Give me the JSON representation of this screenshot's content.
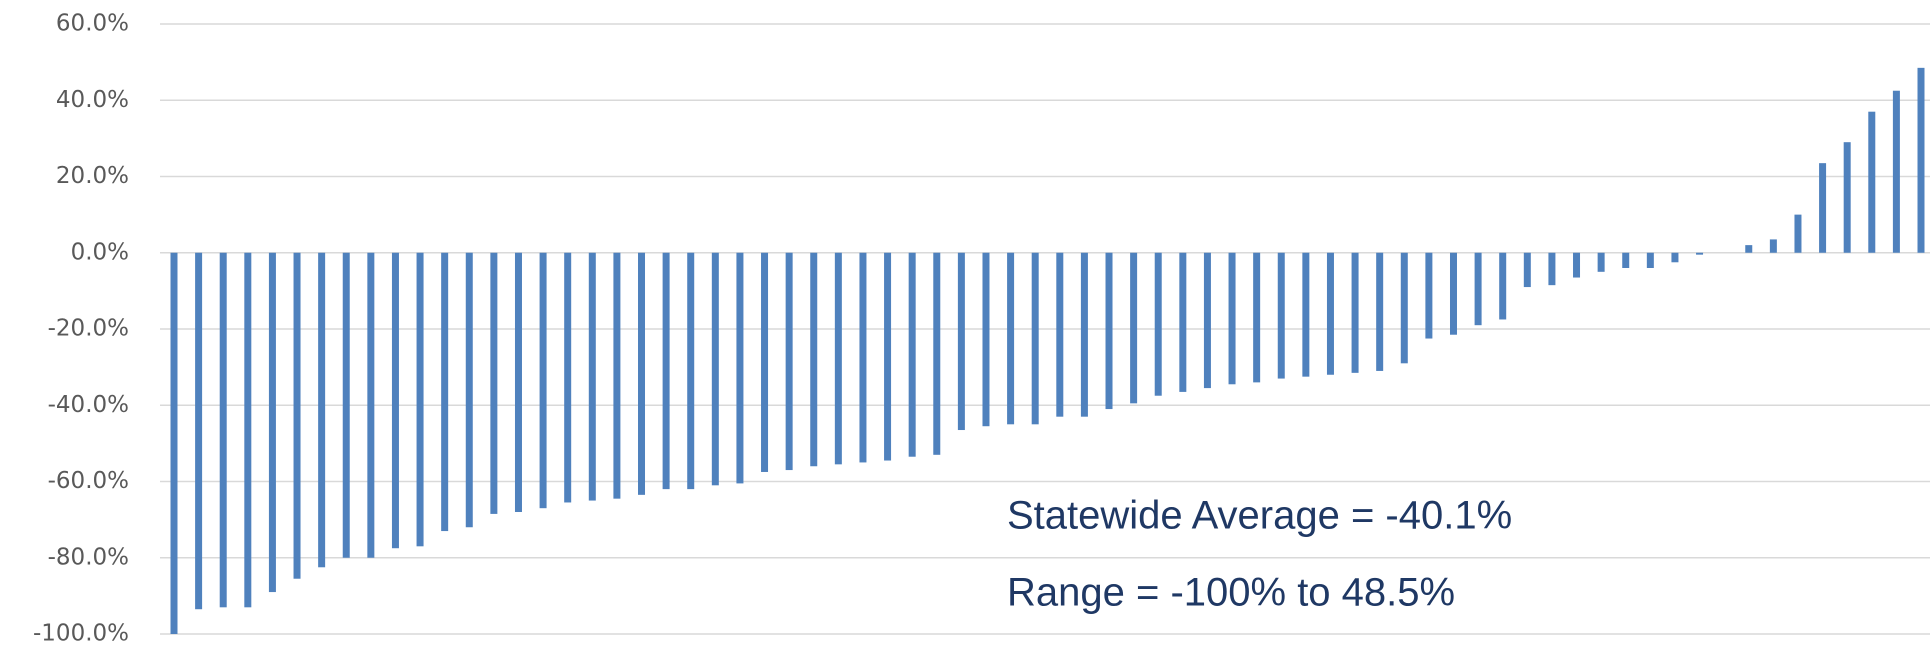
{
  "chart_data": {
    "type": "bar",
    "values": [
      -100,
      -93.5,
      -93,
      -93,
      -89,
      -85.5,
      -82.5,
      -80,
      -80,
      -77.5,
      -77,
      -73,
      -72,
      -68.5,
      -68,
      -67,
      -65.5,
      -65,
      -64.5,
      -63.5,
      -62,
      -62,
      -61,
      -60.5,
      -57.5,
      -57,
      -56,
      -55.5,
      -55,
      -54.5,
      -53.5,
      -53,
      -46.5,
      -45.5,
      -45,
      -45,
      -43,
      -43,
      -41,
      -39.5,
      -37.5,
      -36.5,
      -35.5,
      -34.5,
      -34,
      -33,
      -32.5,
      -32,
      -31.5,
      -31,
      -29,
      -22.5,
      -21.5,
      -19,
      -17.5,
      -9,
      -8.5,
      -6.5,
      -5,
      -4,
      -4,
      -2.5,
      -0.5,
      0,
      2,
      3.5,
      10,
      23.5,
      29,
      37,
      42.5,
      48.5
    ],
    "color": "#4f81bd",
    "ylim": [
      -100,
      60
    ],
    "yticks": [
      {
        "value": -100,
        "label": "-100.0%"
      },
      {
        "value": -80,
        "label": "-80.0%"
      },
      {
        "value": -60,
        "label": "-60.0%"
      },
      {
        "value": -40,
        "label": "-40.0%"
      },
      {
        "value": -20,
        "label": "-20.0%"
      },
      {
        "value": 0,
        "label": "0.0%"
      },
      {
        "value": 20,
        "label": "20.0%"
      },
      {
        "value": 40,
        "label": "40.0%"
      },
      {
        "value": 60,
        "label": "60.0%"
      }
    ],
    "grid": true,
    "annotations": [
      "Statewide Average = -40.1%",
      "Range = -100% to 48.5%"
    ]
  }
}
